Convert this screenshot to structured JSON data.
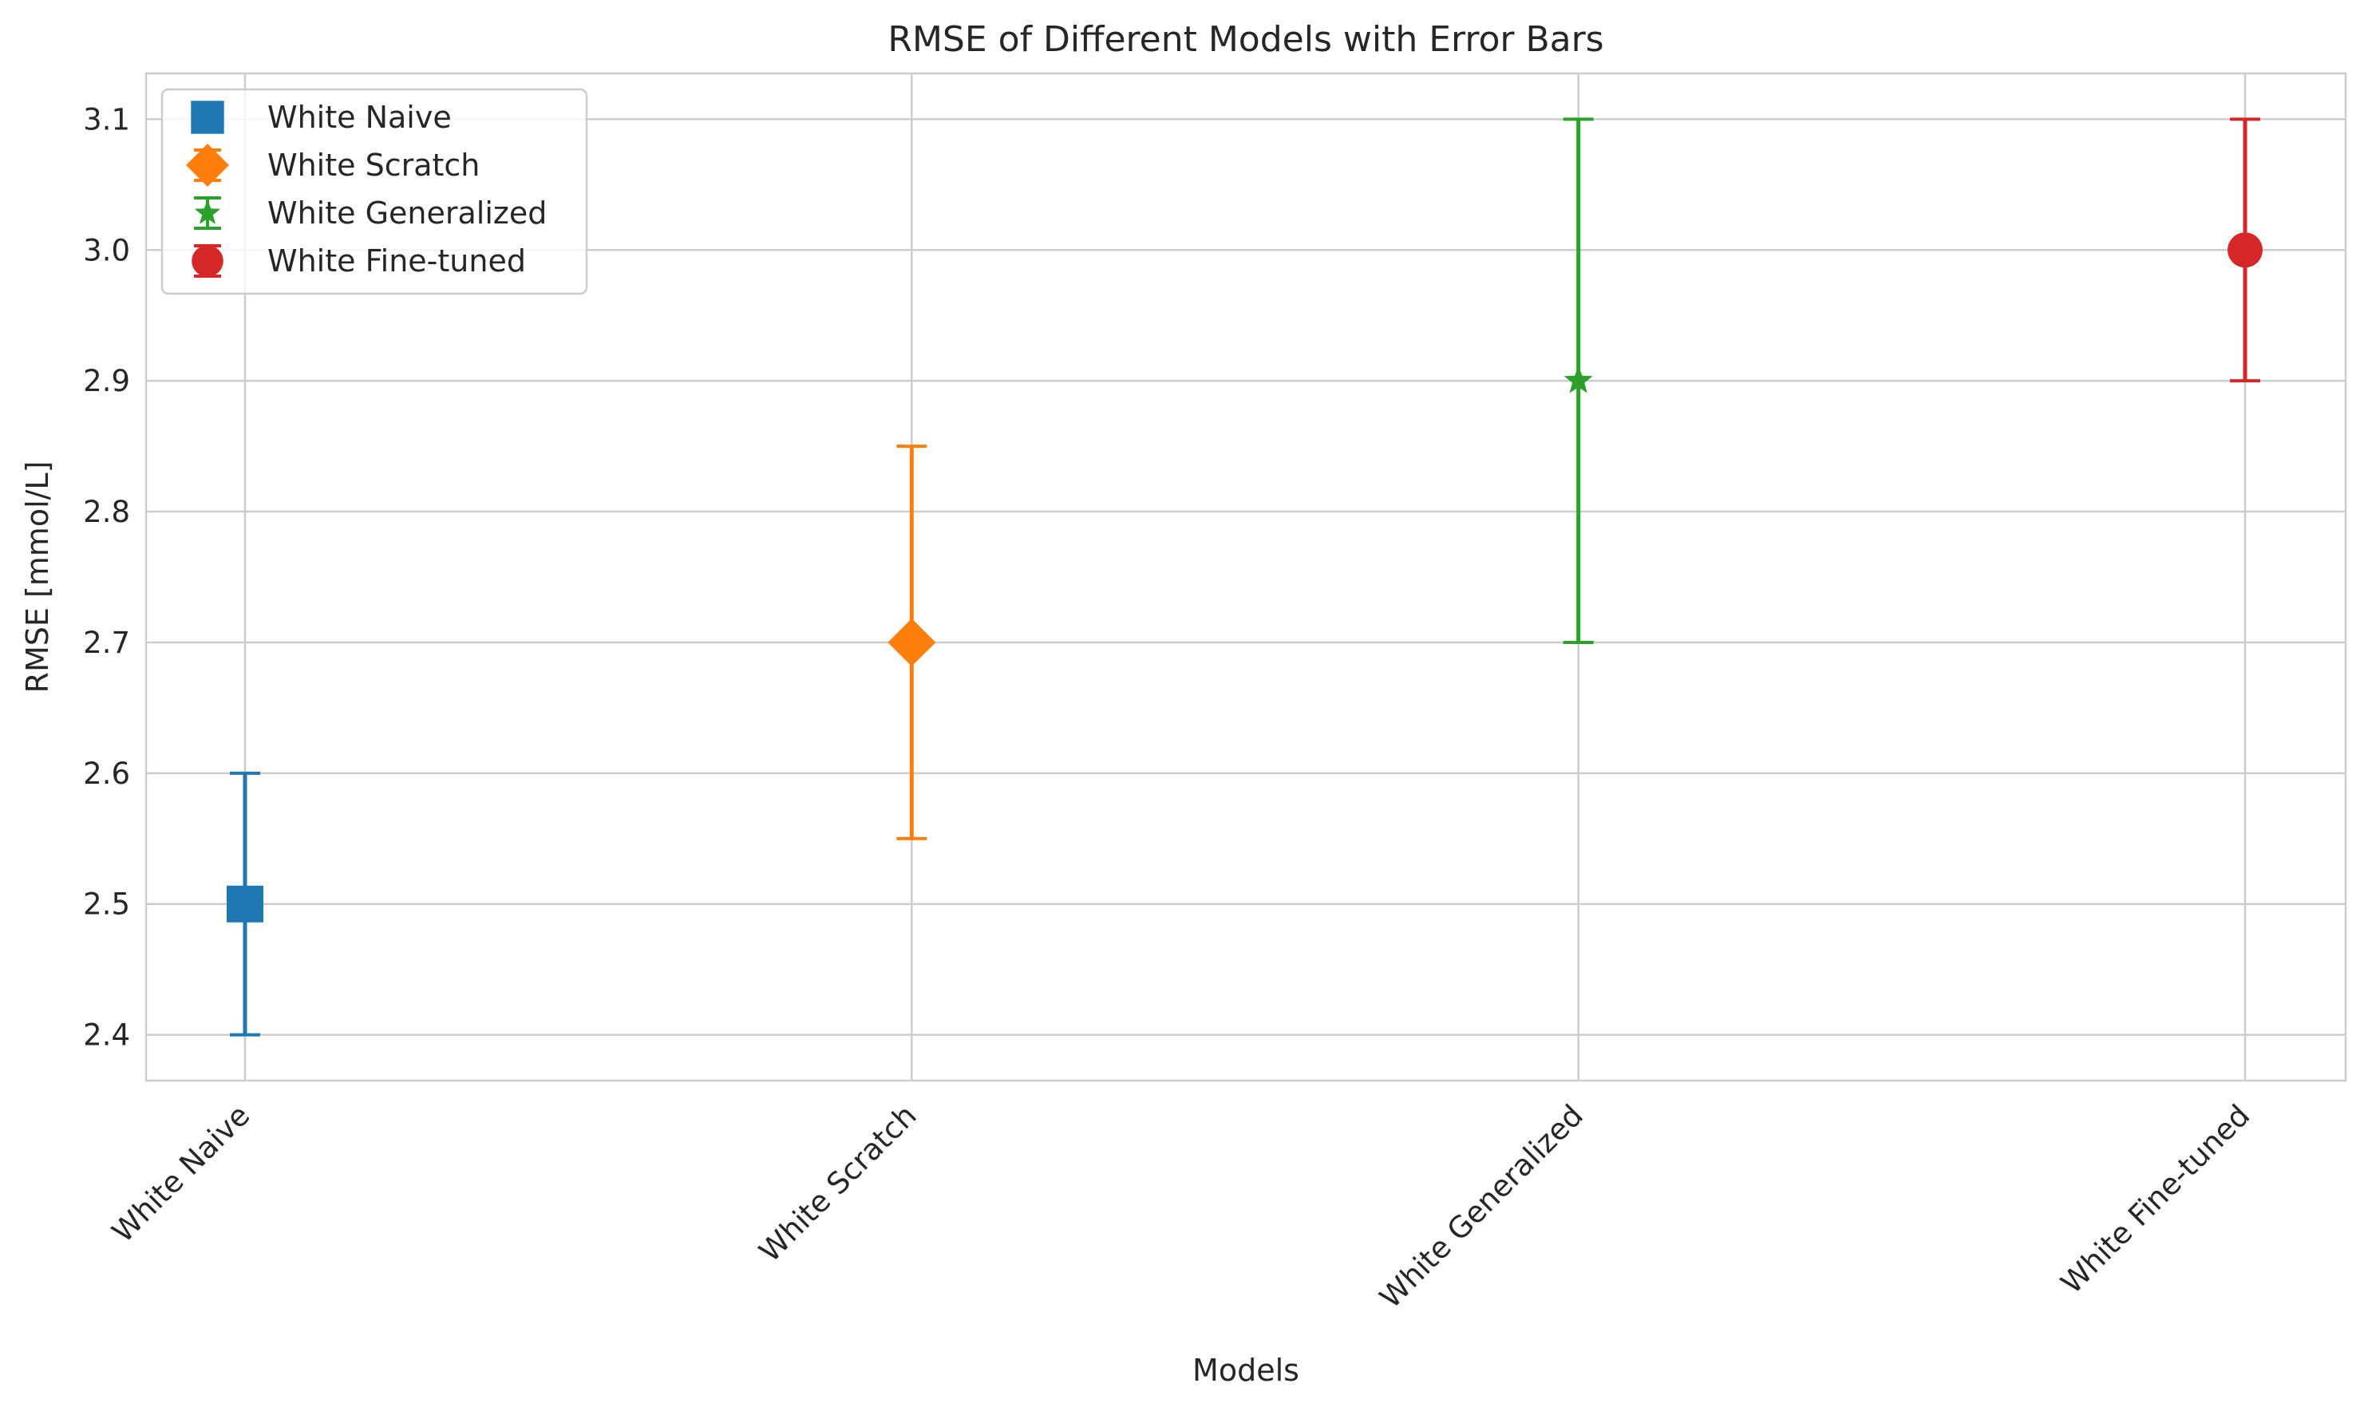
{
  "chart_data": {
    "type": "scatter",
    "title": "RMSE of Different Models with Error Bars",
    "xlabel": "Models",
    "ylabel": "RMSE [mmol/L]",
    "categories": [
      "White Naive",
      "White Scratch",
      "White Generalized",
      "White Fine-tuned"
    ],
    "ylim": [
      2.365,
      3.135
    ],
    "yticks": [
      2.4,
      2.5,
      2.6,
      2.7,
      2.8,
      2.9,
      3.0,
      3.1
    ],
    "ytick_labels": [
      "2.4",
      "2.5",
      "2.6",
      "2.7",
      "2.8",
      "2.9",
      "3.0",
      "3.1"
    ],
    "grid": true,
    "legend_position": "top-left",
    "series": [
      {
        "name": "White Naive",
        "value": 2.5,
        "error": 0.1,
        "marker": "square",
        "color": "#1f77b4"
      },
      {
        "name": "White Scratch",
        "value": 2.7,
        "error": 0.15,
        "marker": "diamond",
        "color": "#ff7f0e"
      },
      {
        "name": "White Generalized",
        "value": 2.9,
        "error": 0.2,
        "marker": "star",
        "color": "#2ca02c"
      },
      {
        "name": "White Fine-tuned",
        "value": 3.0,
        "error": 0.1,
        "marker": "circle",
        "color": "#d62728"
      }
    ]
  }
}
